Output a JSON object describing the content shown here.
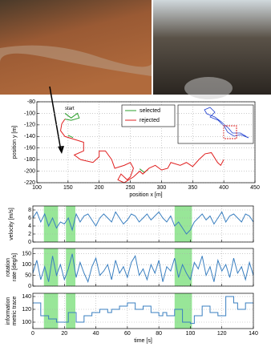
{
  "chart_data": [
    {
      "type": "line",
      "xlabel": "position x [m]",
      "ylabel": [
        "position y [m]"
      ],
      "annotation": "start",
      "xlim": [
        100,
        450
      ],
      "xticks": [
        100,
        150,
        200,
        250,
        300,
        350,
        400,
        450
      ],
      "ylim": [
        -220,
        -80
      ],
      "yticks": [
        -80,
        -100,
        -120,
        -140,
        -160,
        -180,
        -200,
        -220
      ],
      "grid": true,
      "legend": "top-center",
      "series": [
        {
          "name": "selected",
          "color": "#2ca02c",
          "x": [
            145,
            155,
            165,
            168,
            155,
            145,
            null,
            150,
            158,
            null,
            265,
            272,
            278
          ],
          "values": [
            -100,
            -108,
            -100,
            -108,
            -112,
            -110,
            null,
            -138,
            -142,
            null,
            -196,
            -202,
            -198
          ]
        },
        {
          "name": "rejected",
          "color": "#e02020",
          "x": [
            145,
            140,
            138,
            145,
            160,
            175,
            175,
            160,
            170,
            190,
            200,
            200,
            210,
            220,
            225,
            240,
            250,
            255,
            250,
            245,
            235,
            230,
            240,
            255,
            265,
            270,
            280,
            290,
            300,
            310,
            315,
            330,
            340,
            350,
            360,
            370,
            380,
            390,
            395,
            400
          ],
          "values": [
            -110,
            -118,
            -130,
            -140,
            -145,
            -150,
            -165,
            -172,
            -180,
            -185,
            -175,
            -165,
            -165,
            -180,
            -195,
            -190,
            -185,
            -195,
            -210,
            -215,
            -205,
            -215,
            -220,
            -210,
            -200,
            -205,
            -195,
            -190,
            -198,
            -195,
            -185,
            -190,
            -185,
            -192,
            -180,
            -170,
            -168,
            -185,
            -190,
            -180
          ]
        }
      ]
    },
    {
      "type": "line",
      "ylabel": [
        "velocity [m/s]"
      ],
      "xlim": [
        0,
        140
      ],
      "xticks": [
        0,
        20,
        40,
        60,
        80,
        100,
        120,
        140
      ],
      "ylim": [
        0,
        9
      ],
      "yticks": [
        0,
        2,
        4,
        6,
        8
      ],
      "grid": true,
      "highlights": [
        [
          7,
          16
        ],
        [
          21,
          27
        ],
        [
          90,
          101
        ]
      ],
      "x": [
        0,
        2.5,
        5,
        7.5,
        10,
        12.5,
        15,
        17.5,
        20,
        22.5,
        25,
        27.5,
        30,
        32.5,
        35,
        37.5,
        40,
        42.5,
        45,
        47.5,
        50,
        52.5,
        55,
        57.5,
        60,
        62.5,
        65,
        67.5,
        70,
        72.5,
        75,
        77.5,
        80,
        82.5,
        85,
        87.5,
        90,
        92.5,
        95,
        97.5,
        100,
        102.5,
        105,
        107.5,
        110,
        112.5,
        115,
        117.5,
        120,
        122.5,
        125,
        127.5,
        130,
        132.5,
        135,
        137.5,
        140
      ],
      "series": [
        {
          "color": "#3a7fc0",
          "values": [
            6,
            7.5,
            5,
            7,
            4,
            6,
            3.5,
            5,
            4.5,
            6,
            3,
            7,
            5,
            6.5,
            7,
            5.5,
            4,
            6,
            7,
            6,
            5,
            7.5,
            6,
            4.5,
            5.5,
            7,
            6.5,
            5,
            6,
            7,
            5.5,
            6.5,
            7.5,
            6,
            5,
            6.5,
            4,
            5,
            3.5,
            2,
            3,
            5,
            6,
            7,
            5.5,
            6.5,
            4.5,
            6,
            7.5,
            5,
            6.5,
            7,
            6,
            5,
            7,
            6.5,
            5
          ]
        }
      ]
    },
    {
      "type": "line",
      "ylabel": [
        "rotation",
        "rate [deg/s]"
      ],
      "xlim": [
        0,
        140
      ],
      "xticks": [
        0,
        20,
        40,
        60,
        80,
        100,
        120,
        140
      ],
      "ylim": [
        0,
        175
      ],
      "yticks": [
        0,
        50,
        100,
        150
      ],
      "grid": true,
      "highlights": [
        [
          7,
          16
        ],
        [
          21,
          27
        ],
        [
          90,
          101
        ]
      ],
      "x": [
        0,
        2.5,
        5,
        7.5,
        10,
        12.5,
        15,
        17.5,
        20,
        22.5,
        25,
        27.5,
        30,
        32.5,
        35,
        37.5,
        40,
        42.5,
        45,
        47.5,
        50,
        52.5,
        55,
        57.5,
        60,
        62.5,
        65,
        67.5,
        70,
        72.5,
        75,
        77.5,
        80,
        82.5,
        85,
        87.5,
        90,
        92.5,
        95,
        97.5,
        100,
        102.5,
        105,
        107.5,
        110,
        112.5,
        115,
        117.5,
        120,
        122.5,
        125,
        127.5,
        130,
        132.5,
        135,
        137.5,
        140
      ],
      "series": [
        {
          "color": "#3a7fc0",
          "values": [
            60,
            120,
            30,
            90,
            20,
            140,
            50,
            100,
            30,
            80,
            150,
            40,
            110,
            60,
            20,
            90,
            130,
            50,
            70,
            100,
            30,
            120,
            60,
            90,
            40,
            110,
            140,
            50,
            80,
            30,
            100,
            60,
            120,
            20,
            90,
            70,
            130,
            40,
            100,
            60,
            30,
            110,
            80,
            140,
            50,
            90,
            20,
            120,
            70,
            100,
            40,
            130,
            60,
            90,
            30,
            110,
            50
          ]
        }
      ]
    },
    {
      "type": "step",
      "xlabel": "time [s]",
      "ylabel": [
        "information",
        "metric trace"
      ],
      "xlim": [
        0,
        140
      ],
      "xticks": [
        0,
        20,
        40,
        60,
        80,
        100,
        120,
        140
      ],
      "ylim": [
        90,
        145
      ],
      "yticks": [
        100,
        120,
        140
      ],
      "grid": true,
      "highlights": [
        [
          7,
          16
        ],
        [
          21,
          27
        ],
        [
          90,
          101
        ]
      ],
      "x": [
        0,
        2.5,
        5,
        7.5,
        10,
        12.5,
        15,
        17.5,
        20,
        22.5,
        25,
        27.5,
        30,
        32.5,
        35,
        37.5,
        40,
        42.5,
        45,
        47.5,
        50,
        52.5,
        55,
        57.5,
        60,
        62.5,
        65,
        67.5,
        70,
        72.5,
        75,
        77.5,
        80,
        82.5,
        85,
        87.5,
        90,
        92.5,
        95,
        97.5,
        100,
        102.5,
        105,
        107.5,
        110,
        112.5,
        115,
        117.5,
        120,
        122.5,
        125,
        127.5,
        130,
        132.5,
        135,
        137.5,
        140
      ],
      "series": [
        {
          "color": "#3a7fc0",
          "values": [
            130,
            130,
            110,
            110,
            105,
            105,
            100,
            100,
            100,
            115,
            115,
            100,
            100,
            110,
            110,
            115,
            115,
            120,
            120,
            115,
            120,
            120,
            125,
            125,
            130,
            130,
            120,
            120,
            125,
            125,
            115,
            115,
            110,
            115,
            110,
            110,
            120,
            120,
            100,
            100,
            98,
            110,
            110,
            125,
            125,
            115,
            115,
            110,
            110,
            140,
            140,
            130,
            120,
            120,
            130,
            130,
            130
          ]
        }
      ]
    }
  ]
}
